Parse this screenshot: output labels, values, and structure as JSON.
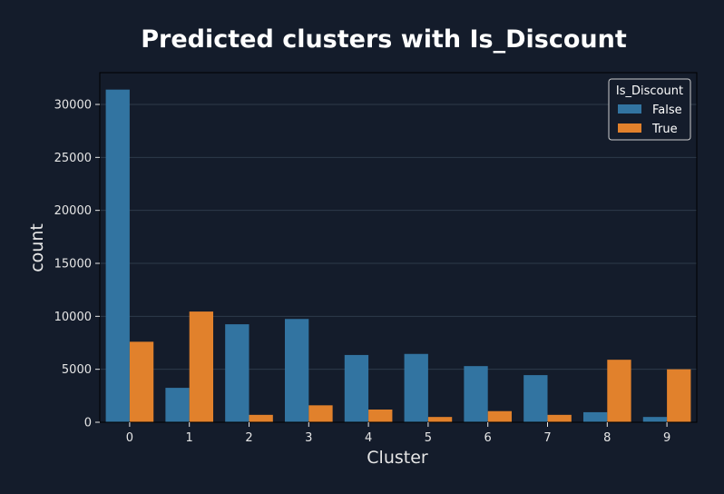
{
  "chart_data": {
    "type": "bar",
    "title": "Predicted clusters with Is_Discount",
    "xlabel": "Cluster",
    "ylabel": "count",
    "categories": [
      "0",
      "1",
      "2",
      "3",
      "4",
      "5",
      "6",
      "7",
      "8",
      "9"
    ],
    "series": [
      {
        "name": "False",
        "color": "#3274a1",
        "values": [
          31400,
          3250,
          9250,
          9750,
          6350,
          6450,
          5300,
          4450,
          950,
          500
        ]
      },
      {
        "name": "True",
        "color": "#e1812c",
        "values": [
          7600,
          10450,
          700,
          1600,
          1200,
          500,
          1050,
          700,
          5900,
          5000
        ]
      }
    ],
    "ylim": [
      0,
      33000
    ],
    "yticks": [
      0,
      5000,
      10000,
      15000,
      20000,
      25000,
      30000
    ],
    "ytick_labels": [
      "0",
      "5000",
      "10000",
      "15000",
      "20000",
      "25000",
      "30000"
    ],
    "grid": true,
    "legend": {
      "title": "Is_Discount",
      "position": "top-right"
    },
    "colors": {
      "background": "#141c2b",
      "grid": "#2e3a4a",
      "text": "#e6e6e6",
      "spine": "#000000"
    }
  }
}
